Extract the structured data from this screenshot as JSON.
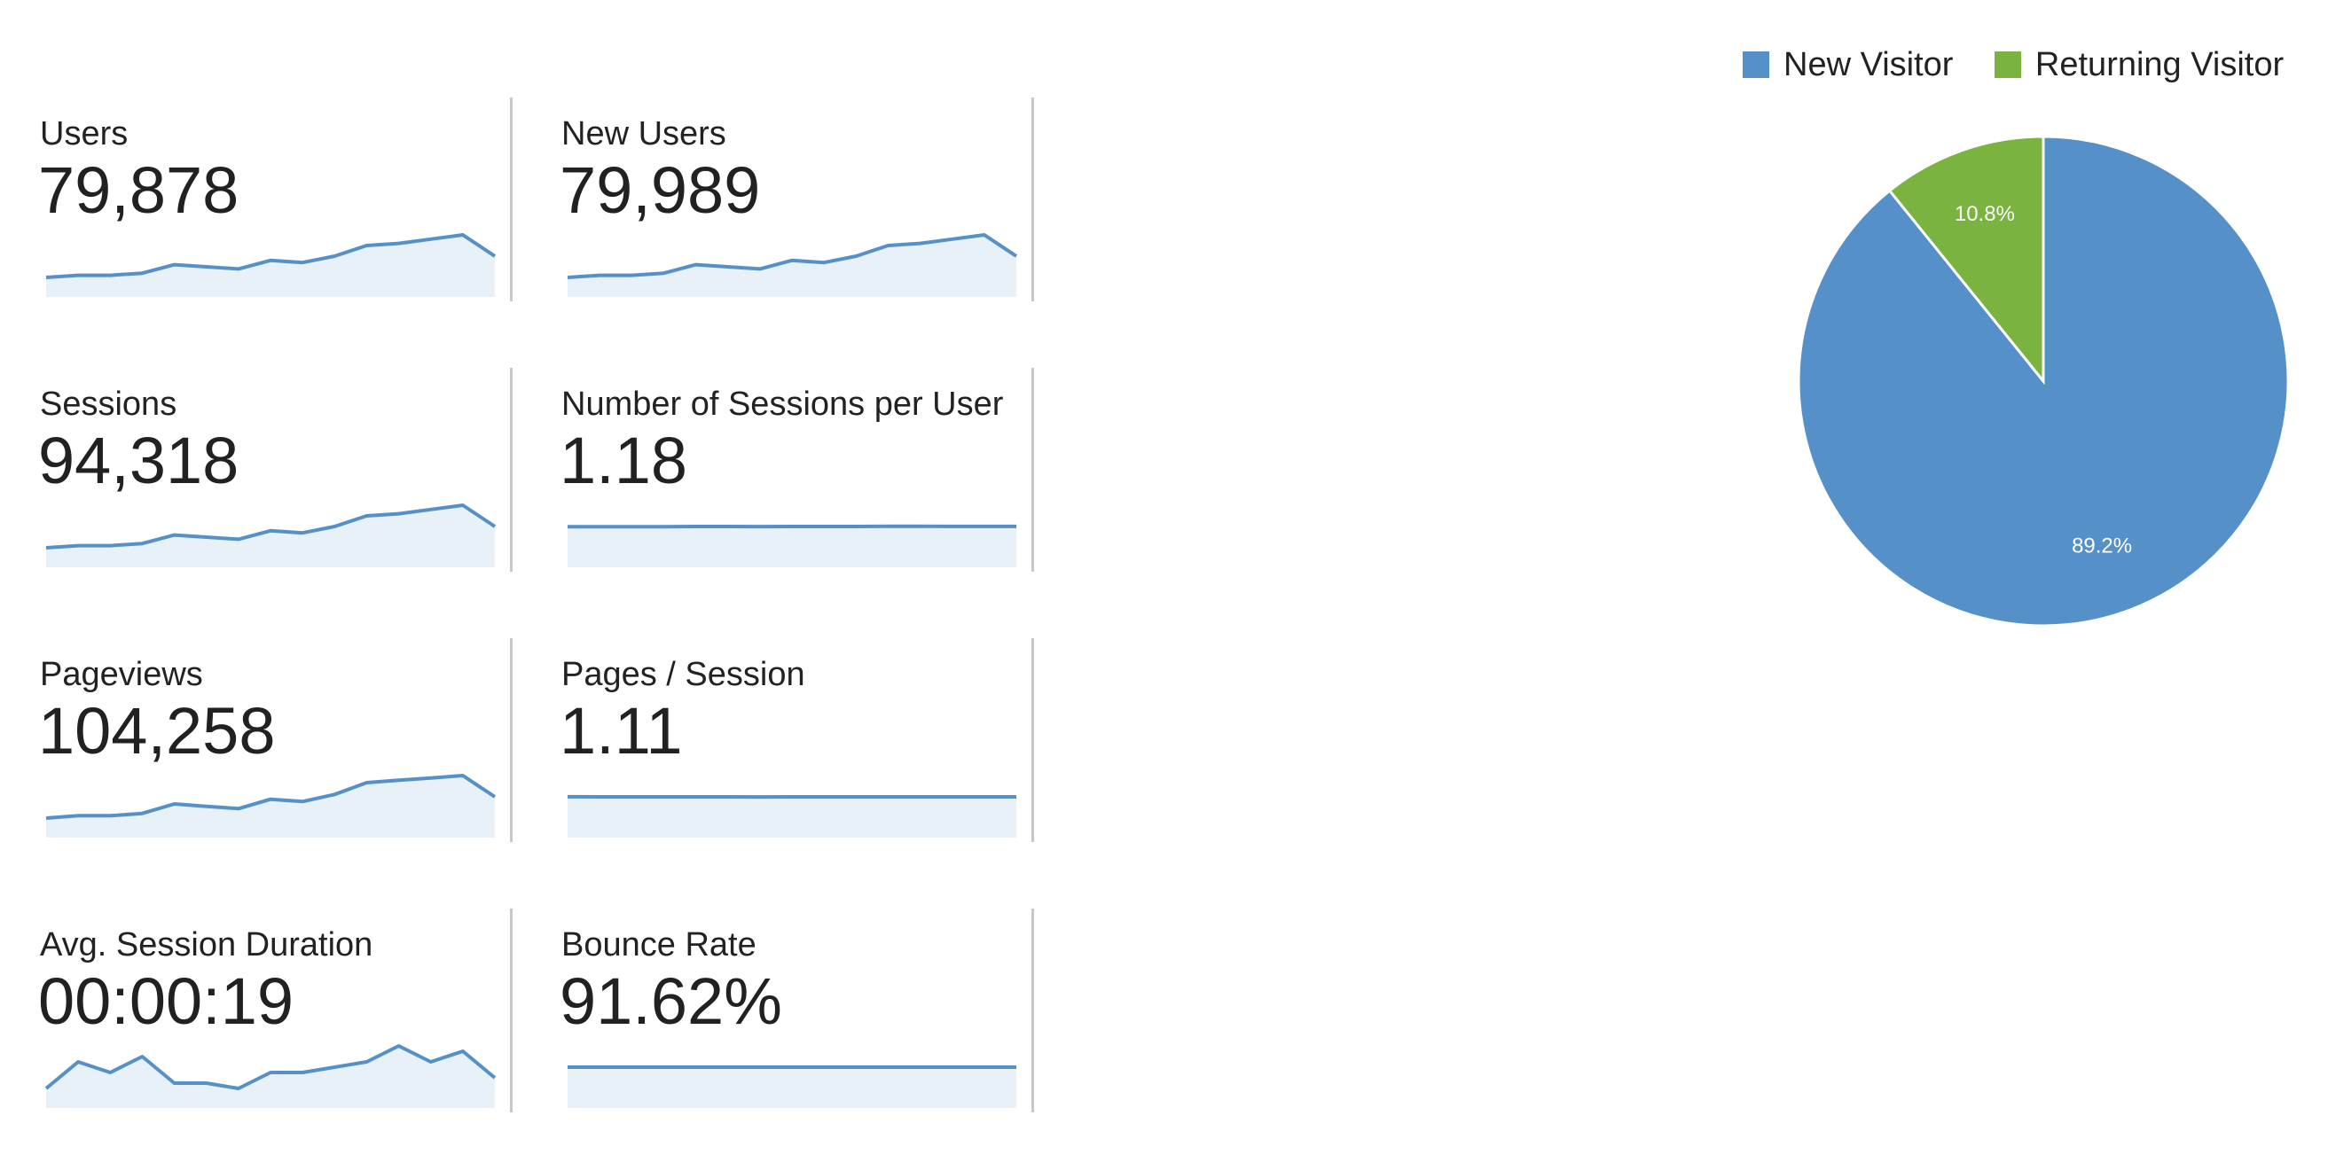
{
  "colors": {
    "new_visitor": "#5590c9",
    "returning_visitor": "#7bb340",
    "sparkline_line": "#5590c9",
    "sparkline_fill": "#e8f0f8",
    "separator": "#c8c8c8"
  },
  "metrics": [
    {
      "label": "Users",
      "value": "79,878",
      "trend": [
        10,
        11,
        11,
        12,
        16,
        15,
        14,
        18,
        17,
        20,
        25,
        26,
        28,
        30,
        20
      ]
    },
    {
      "label": "New Users",
      "value": "79,989",
      "trend": [
        10,
        11,
        11,
        12,
        16,
        15,
        14,
        18,
        17,
        20,
        25,
        26,
        28,
        30,
        20
      ]
    },
    {
      "label": "Sessions",
      "value": "94,318",
      "trend": [
        10,
        11,
        11,
        12,
        16,
        15,
        14,
        18,
        17,
        20,
        25,
        26,
        28,
        30,
        20
      ]
    },
    {
      "label": "Number of Sessions per User",
      "value": "1.18",
      "trend": [
        50,
        50,
        50,
        50,
        50.3,
        50.3,
        50.2,
        50.5,
        50.5,
        50.5,
        50.8,
        50.8,
        50.7,
        50.6,
        50.6
      ]
    },
    {
      "label": "Pageviews",
      "value": "104,258",
      "trend": [
        10,
        11,
        11,
        12,
        16,
        15,
        14,
        18,
        17,
        20,
        25,
        26,
        27,
        28,
        19
      ]
    },
    {
      "label": "Pages / Session",
      "value": "1.11",
      "trend": [
        50.6,
        50.5,
        50.5,
        50.5,
        50.4,
        50.3,
        50.2,
        50.3,
        50.5,
        50.4,
        50.5,
        50.5,
        50.4,
        50.3,
        50.4
      ]
    },
    {
      "label": "Avg. Session Duration",
      "value": "00:00:19",
      "trend": [
        22,
        27,
        25,
        28,
        23,
        23,
        22,
        25,
        25,
        26,
        27,
        30,
        27,
        29,
        24
      ]
    },
    {
      "label": "Bounce Rate",
      "value": "91.62%",
      "trend": [
        50.2,
        50.2,
        50.2,
        50.3,
        50.3,
        50.3,
        50.3,
        50.3,
        50.2,
        50.2,
        50.1,
        50.2,
        50.2,
        50.2,
        50.2
      ]
    }
  ],
  "chart_data": {
    "type": "pie",
    "title": "",
    "legend_position": "top-right",
    "slices": [
      {
        "name": "New Visitor",
        "value": 89.2,
        "label": "89.2%",
        "color": "#5590c9"
      },
      {
        "name": "Returning Visitor",
        "value": 10.8,
        "label": "10.8%",
        "color": "#7bb340"
      }
    ]
  }
}
